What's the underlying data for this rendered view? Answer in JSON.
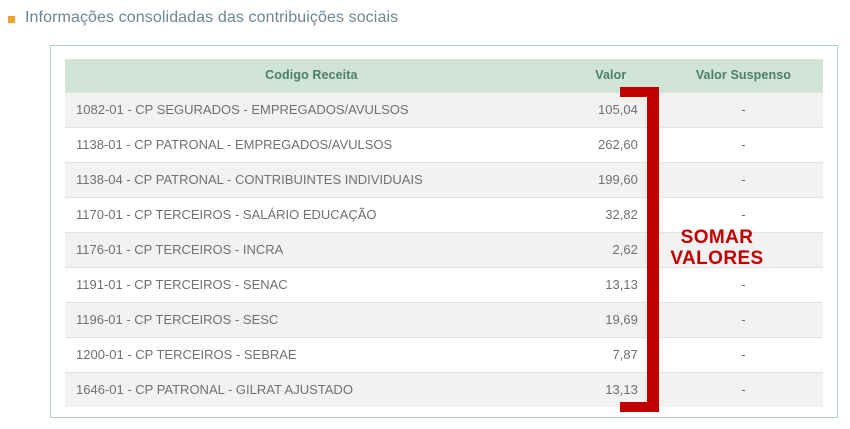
{
  "colors": {
    "annotation_red": "#c00000",
    "header_bg": "#cfe3d6",
    "header_text": "#4f7e67",
    "bullet_orange": "#efa530",
    "title_text": "#6d8594",
    "row_alt_bg": "#f2f2f2",
    "row_text": "#707070",
    "card_border": "#b3ccd1",
    "row_divider": "#e2e2e2"
  },
  "title": {
    "text": "Informações consolidadas das contribuições sociais"
  },
  "table": {
    "columns": [
      "Codigo Receita",
      "Valor",
      "Valor Suspenso"
    ],
    "rows": [
      {
        "codigo": "1082-01 - CP SEGURADOS - EMPREGADOS/AVULSOS",
        "valor": "105,04",
        "suspenso": "-"
      },
      {
        "codigo": "1138-01 - CP PATRONAL - EMPREGADOS/AVULSOS",
        "valor": "262,60",
        "suspenso": "-"
      },
      {
        "codigo": "1138-04 - CP PATRONAL - CONTRIBUINTES INDIVIDUAIS",
        "valor": "199,60",
        "suspenso": "-"
      },
      {
        "codigo": "1170-01 - CP TERCEIROS - SALÁRIO EDUCAÇÃO",
        "valor": "32,82",
        "suspenso": "-"
      },
      {
        "codigo": "1176-01 - CP TERCEIROS - INCRA",
        "valor": "2,62",
        "suspenso": "-"
      },
      {
        "codigo": "1191-01 - CP TERCEIROS - SENAC",
        "valor": "13,13",
        "suspenso": "-"
      },
      {
        "codigo": "1196-01 - CP TERCEIROS - SESC",
        "valor": "19,69",
        "suspenso": "-"
      },
      {
        "codigo": "1200-01 - CP TERCEIROS - SEBRAE",
        "valor": "7,87",
        "suspenso": "-"
      },
      {
        "codigo": "1646-01 - CP PATRONAL - GILRAT AJUSTADO",
        "valor": "13,13",
        "suspenso": "-"
      }
    ]
  },
  "annotation": {
    "line1": "SOMAR",
    "line2": "VALORES"
  }
}
